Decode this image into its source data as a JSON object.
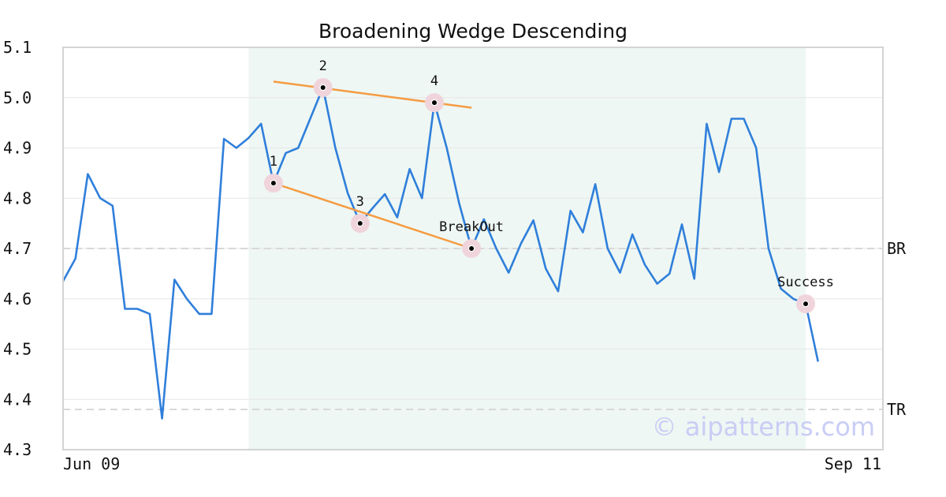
{
  "chart_data": {
    "type": "line",
    "title": "Broadening Wedge Descending",
    "ylim": [
      4.3,
      5.1
    ],
    "yticks": [
      "4.3",
      "4.4",
      "4.5",
      "4.6",
      "4.7",
      "4.8",
      "4.9",
      "5.0",
      "5.1"
    ],
    "xticks": [
      "Jun 09",
      "Sep 11"
    ],
    "grid": true,
    "colors": {
      "line": "#2f7fdb",
      "trendline": "#f59b42",
      "highlight": "#eef7f3",
      "marker_halo": "#f0d4dc",
      "reference_line": "#d8d8d8",
      "watermark": "#c9cdf5"
    },
    "series": [
      {
        "values": [
          4.635,
          4.68,
          4.848,
          4.8,
          4.785,
          4.58,
          4.58,
          4.57,
          4.362,
          4.638,
          4.6,
          4.57,
          4.57,
          4.918,
          4.9,
          4.92,
          4.948,
          4.83,
          4.89,
          4.9,
          4.96,
          5.02,
          4.9,
          4.81,
          4.75,
          4.78,
          4.808,
          4.762,
          4.858,
          4.8,
          4.99,
          4.9,
          4.79,
          4.7,
          4.758,
          4.7,
          4.652,
          4.71,
          4.756,
          4.66,
          4.615,
          4.775,
          4.732,
          4.828,
          4.7,
          4.652,
          4.728,
          4.668,
          4.63,
          4.65,
          4.748,
          4.64,
          4.948,
          4.852,
          4.958,
          4.958,
          4.9,
          4.7,
          4.62,
          4.6,
          4.59,
          4.475
        ]
      }
    ],
    "highlight_range": [
      15,
      60
    ],
    "trendlines": [
      {
        "from": [
          17,
          5.032
        ],
        "to": [
          33,
          4.98
        ]
      },
      {
        "from": [
          17,
          4.83
        ],
        "to": [
          33,
          4.7
        ]
      }
    ],
    "points": [
      {
        "label": "1",
        "x": 17,
        "y": 4.83
      },
      {
        "label": "2",
        "x": 21,
        "y": 5.02
      },
      {
        "label": "3",
        "x": 24,
        "y": 4.75
      },
      {
        "label": "4",
        "x": 30,
        "y": 4.99
      },
      {
        "label": "BreakOut",
        "x": 33,
        "y": 4.7
      },
      {
        "label": "Success",
        "x": 60,
        "y": 4.59
      }
    ],
    "reference_lines": [
      {
        "label": "BR",
        "y": 4.7
      },
      {
        "label": "TR",
        "y": 4.38
      }
    ],
    "watermark": "© aipatterns.com"
  }
}
